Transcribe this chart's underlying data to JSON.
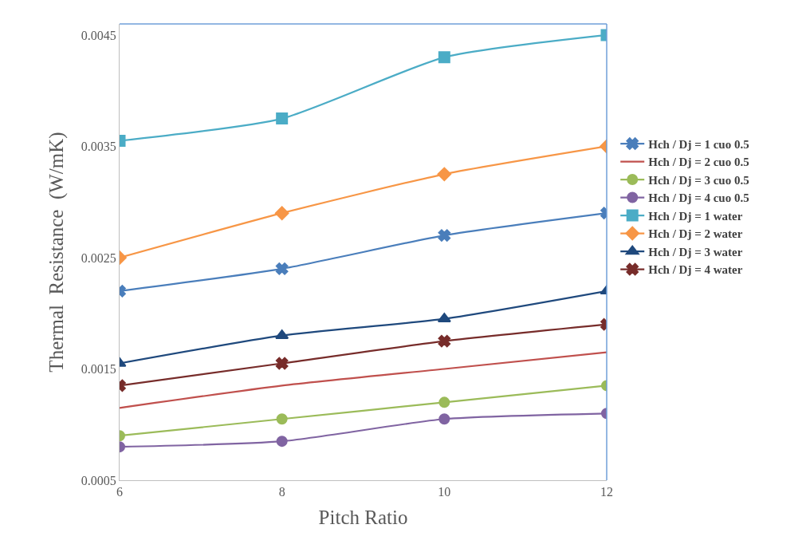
{
  "chart_data": {
    "type": "line",
    "xlabel": "Pitch Ratio",
    "ylabel": "Thermal  Resistance  (W/mK)",
    "x": [
      6,
      8,
      10,
      12
    ],
    "xlim": [
      6,
      12
    ],
    "xticks": [
      6,
      8,
      10,
      12
    ],
    "ylim": [
      0.0005,
      0.0046
    ],
    "yticks": [
      0.0005,
      0.0015,
      0.0025,
      0.0035,
      0.0045
    ],
    "legend": "right",
    "series": [
      {
        "name": "Hch / Dj = 1 cuo 0.5",
        "color": "#4a7ebb",
        "marker": "cross",
        "values": [
          0.0022,
          0.0024,
          0.0027,
          0.0029
        ]
      },
      {
        "name": "Hch / Dj = 2 cuo 0.5",
        "color": "#c0504d",
        "marker": "none",
        "values": [
          0.00115,
          0.00135,
          0.0015,
          0.00165
        ]
      },
      {
        "name": "Hch / Dj = 3 cuo 0.5",
        "color": "#9bbb59",
        "marker": "circle",
        "values": [
          0.0009,
          0.00105,
          0.0012,
          0.00135
        ]
      },
      {
        "name": "Hch / Dj = 4 cuo 0.5",
        "color": "#8064a2",
        "marker": "circle",
        "values": [
          0.0008,
          0.00085,
          0.00105,
          0.0011
        ]
      },
      {
        "name": "Hch / Dj = 1 water",
        "color": "#4bacc6",
        "marker": "square",
        "values": [
          0.00355,
          0.00375,
          0.0043,
          0.0045
        ]
      },
      {
        "name": "Hch / Dj = 2 water",
        "color": "#f79646",
        "marker": "diamond",
        "values": [
          0.0025,
          0.0029,
          0.00325,
          0.0035
        ]
      },
      {
        "name": "Hch / Dj = 3 water",
        "color": "#1f497d",
        "marker": "triangle",
        "values": [
          0.00155,
          0.0018,
          0.00195,
          0.0022
        ]
      },
      {
        "name": "Hch / Dj = 4 water",
        "color": "#772c2a",
        "marker": "cross",
        "values": [
          0.00135,
          0.00155,
          0.00175,
          0.0019
        ]
      }
    ]
  }
}
